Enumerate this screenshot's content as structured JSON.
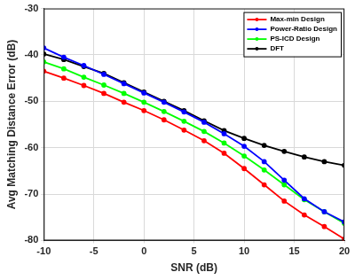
{
  "chart_data": {
    "type": "line",
    "x_label": "SNR (dB)",
    "y_label": "Avg Matching Distance Error (dB)",
    "x": [
      -10,
      -8,
      -6,
      -4,
      -2,
      0,
      2,
      4,
      6,
      8,
      10,
      12,
      14,
      16,
      18,
      20
    ],
    "series": [
      {
        "name": "Max-min Design",
        "color": "#ff0000",
        "marker": "circle",
        "values": [
          -43.5,
          -45,
          -46.6,
          -48.3,
          -50.2,
          -52,
          -54,
          -56.2,
          -58.5,
          -61.2,
          -64.5,
          -68,
          -71.5,
          -74.5,
          -77,
          -79.7
        ]
      },
      {
        "name": "Power-Ratio Design",
        "color": "#0000ff",
        "marker": "circle",
        "values": [
          -38.5,
          -40.5,
          -42.3,
          -44.2,
          -46.2,
          -48.2,
          -50.2,
          -52.3,
          -54.5,
          -57,
          -59.7,
          -63,
          -67,
          -71,
          -73.8,
          -76
        ]
      },
      {
        "name": "PS-ICD Design",
        "color": "#00ff00",
        "marker": "circle",
        "values": [
          -41.5,
          -43,
          -44.8,
          -46.5,
          -48.3,
          -50.2,
          -52.2,
          -54.3,
          -56.5,
          -59,
          -61.8,
          -64.8,
          -68,
          -71.2,
          -73.8,
          -76.3
        ]
      },
      {
        "name": "DFT",
        "color": "#000000",
        "marker": "circle",
        "values": [
          -39.8,
          -41,
          -42.5,
          -44,
          -46,
          -48,
          -50,
          -52,
          -54.2,
          -56.3,
          -58,
          -59.5,
          -60.8,
          -62,
          -63,
          -63.8
        ]
      }
    ],
    "xlim": [
      -10,
      20
    ],
    "xticks": [
      -10,
      -5,
      0,
      5,
      10,
      15,
      20
    ],
    "ylim": [
      -80,
      -30
    ],
    "yticks": [
      -80,
      -70,
      -60,
      -50,
      -40,
      -30
    ],
    "grid": true,
    "legend": "top-right"
  }
}
